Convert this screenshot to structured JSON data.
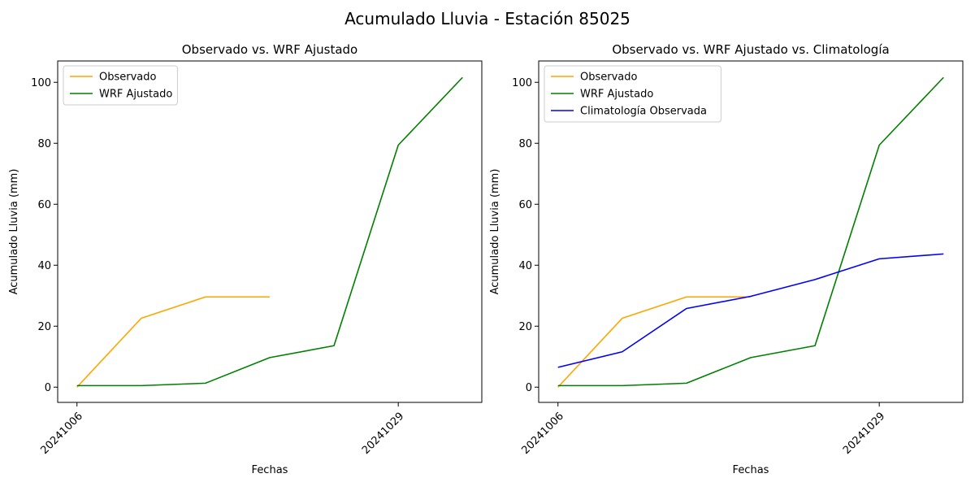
{
  "figure": {
    "title": "Acumulado Lluvia - Estación 85025"
  },
  "chart_data": [
    {
      "type": "line",
      "title": "Observado vs. WRF Ajustado",
      "xlabel": "Fechas",
      "ylabel": "Acumulado Lluvia (mm)",
      "x": [
        0,
        1,
        2,
        3,
        4,
        5,
        6
      ],
      "xticks": [
        {
          "pos": 0,
          "label": "20241006"
        },
        {
          "pos": 5,
          "label": "20241029"
        }
      ],
      "xlim": [
        -0.3,
        6.3
      ],
      "ylim": [
        -5,
        107
      ],
      "yticks": [
        0,
        20,
        40,
        60,
        80,
        100
      ],
      "legend": "upper-left",
      "series": [
        {
          "name": "Observado",
          "color": "#ffa500",
          "values": [
            0,
            22.6,
            29.6,
            29.6,
            null,
            null,
            null
          ]
        },
        {
          "name": "WRF Ajustado",
          "color": "#008000",
          "values": [
            0.5,
            0.5,
            1.3,
            9.7,
            13.6,
            79.4,
            101.6
          ]
        }
      ]
    },
    {
      "type": "line",
      "title": "Observado vs. WRF Ajustado vs. Climatología",
      "xlabel": "Fechas",
      "ylabel": "Acumulado Lluvia (mm)",
      "x": [
        0,
        1,
        2,
        3,
        4,
        5,
        6
      ],
      "xticks": [
        {
          "pos": 0,
          "label": "20241006"
        },
        {
          "pos": 5,
          "label": "20241029"
        }
      ],
      "xlim": [
        -0.3,
        6.3
      ],
      "ylim": [
        -5,
        107
      ],
      "yticks": [
        0,
        20,
        40,
        60,
        80,
        100
      ],
      "legend": "upper-left",
      "series": [
        {
          "name": "Observado",
          "color": "#ffa500",
          "values": [
            0,
            22.6,
            29.6,
            29.6,
            null,
            null,
            null
          ]
        },
        {
          "name": "WRF Ajustado",
          "color": "#008000",
          "values": [
            0.5,
            0.5,
            1.3,
            9.7,
            13.6,
            79.4,
            101.6
          ]
        },
        {
          "name": "Climatología Observada",
          "color": "#0000ff",
          "values": [
            6.5,
            11.6,
            25.8,
            29.8,
            35.3,
            42.1,
            43.7
          ]
        }
      ]
    }
  ]
}
